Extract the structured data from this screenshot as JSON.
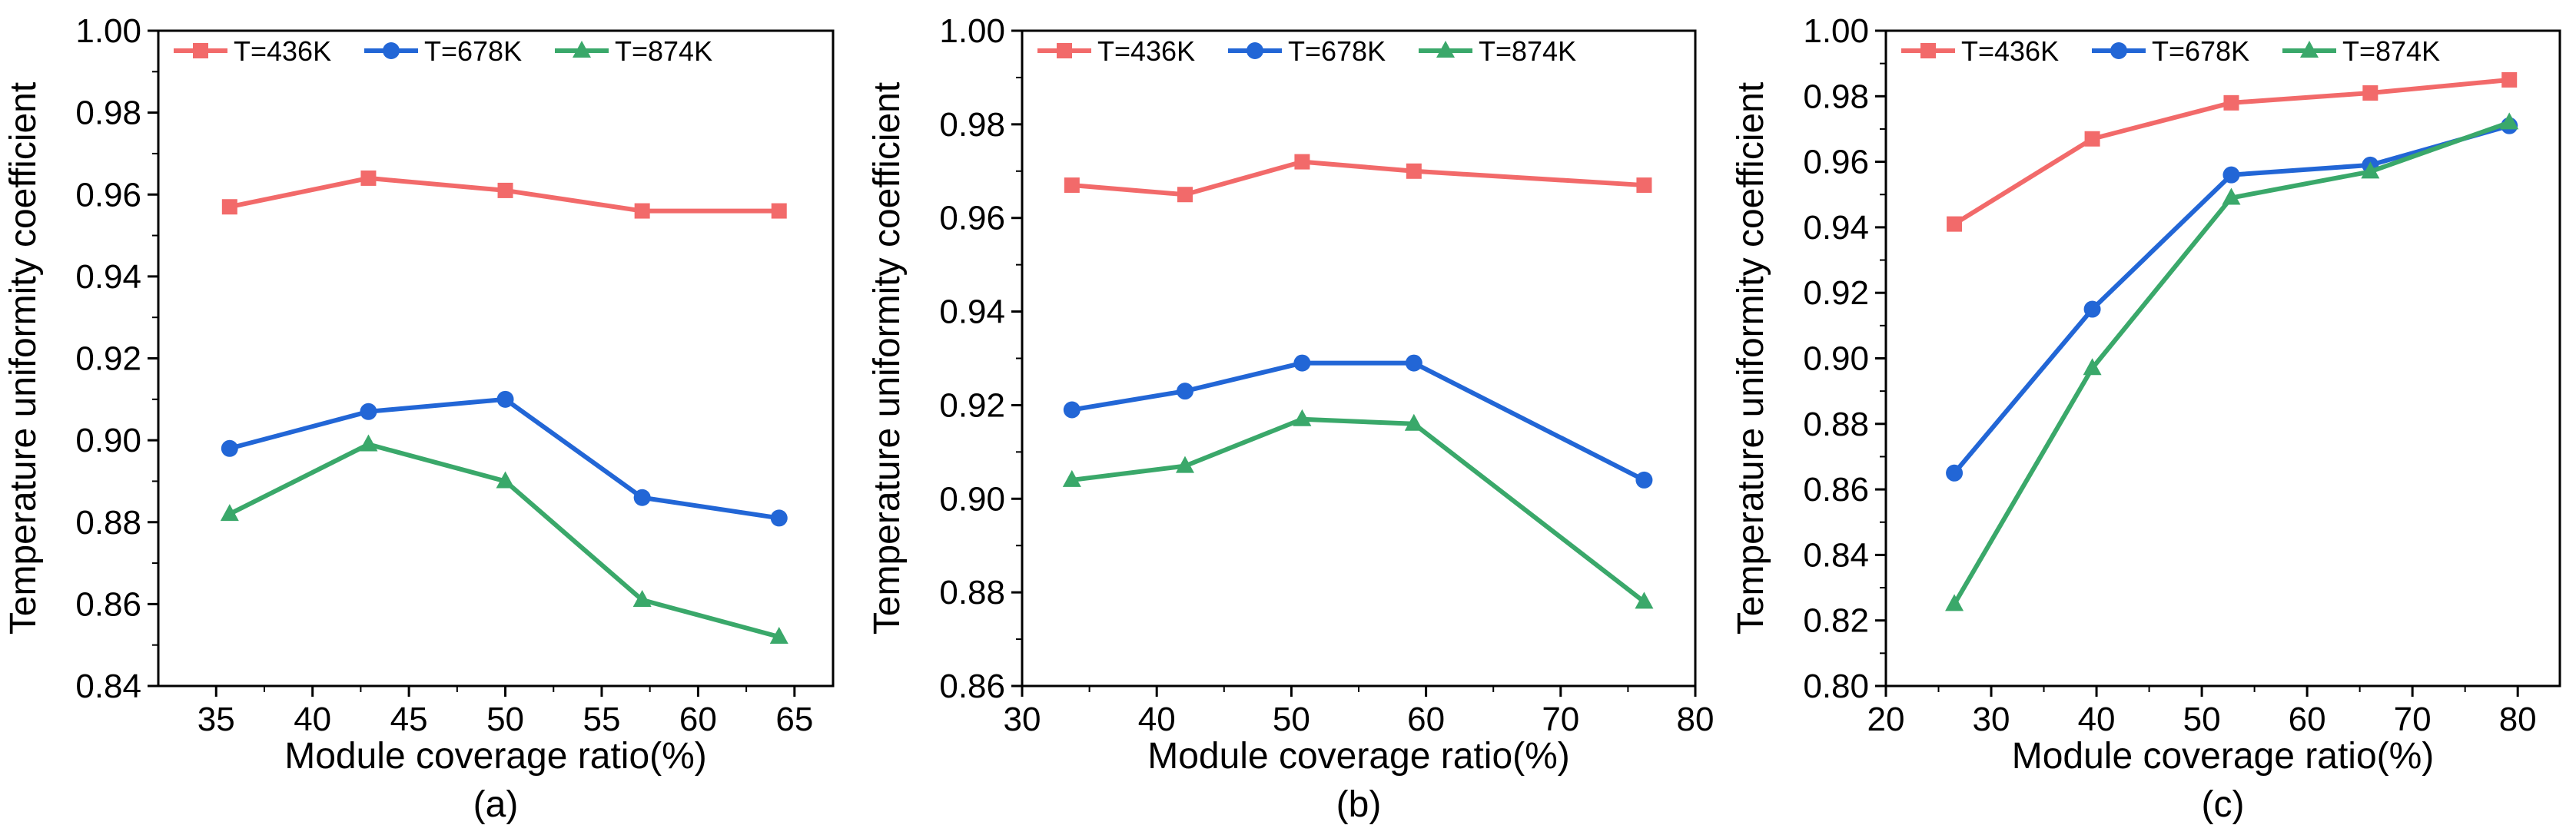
{
  "chart_data": [
    {
      "type": "line",
      "panel_label": "(a)",
      "xlabel": "Module coverage ratio(%)",
      "ylabel": "Temperature uniformity coefficient",
      "xlim": [
        32,
        67
      ],
      "ylim": [
        0.84,
        1.0
      ],
      "xticks": [
        35,
        40,
        45,
        50,
        55,
        60,
        65
      ],
      "yticks": [
        0.84,
        0.86,
        0.88,
        0.9,
        0.92,
        0.94,
        0.96,
        0.98,
        1.0
      ],
      "xtick_labels": [
        "35",
        "40",
        "45",
        "50",
        "55",
        "60",
        "65"
      ],
      "ytick_labels": [
        "0.84",
        "0.86",
        "0.88",
        "0.90",
        "0.92",
        "0.94",
        "0.96",
        "0.98",
        "1.00"
      ],
      "legend_position": "top-left",
      "series": [
        {
          "name": "T=436K",
          "color": "#f26a6a",
          "marker": "square",
          "x": [
            35.7,
            42.9,
            50.0,
            57.1,
            64.2
          ],
          "y": [
            0.957,
            0.964,
            0.961,
            0.956,
            0.956
          ]
        },
        {
          "name": "T=678K",
          "color": "#2266d6",
          "marker": "circle",
          "x": [
            35.7,
            42.9,
            50.0,
            57.1,
            64.2
          ],
          "y": [
            0.898,
            0.907,
            0.91,
            0.886,
            0.881
          ]
        },
        {
          "name": "T=874K",
          "color": "#3aa86a",
          "marker": "triangle",
          "x": [
            35.7,
            42.9,
            50.0,
            57.1,
            64.2
          ],
          "y": [
            0.882,
            0.899,
            0.89,
            0.861,
            0.852
          ]
        }
      ]
    },
    {
      "type": "line",
      "panel_label": "(b)",
      "xlabel": "Module coverage ratio(%)",
      "ylabel": "Temperature uniformity coefficient",
      "xlim": [
        30,
        80
      ],
      "ylim": [
        0.86,
        1.0
      ],
      "xticks": [
        30,
        40,
        50,
        60,
        70,
        80
      ],
      "yticks": [
        0.86,
        0.88,
        0.9,
        0.92,
        0.94,
        0.96,
        0.98,
        1.0
      ],
      "xtick_labels": [
        "30",
        "40",
        "50",
        "60",
        "70",
        "80"
      ],
      "ytick_labels": [
        "0.86",
        "0.88",
        "0.90",
        "0.92",
        "0.94",
        "0.96",
        "0.98",
        "1.00"
      ],
      "legend_position": "top-left",
      "series": [
        {
          "name": "T=436K",
          "color": "#f26a6a",
          "marker": "square",
          "x": [
            33.7,
            42.1,
            50.8,
            59.1,
            76.2
          ],
          "y": [
            0.967,
            0.965,
            0.972,
            0.97,
            0.967
          ]
        },
        {
          "name": "T=678K",
          "color": "#2266d6",
          "marker": "circle",
          "x": [
            33.7,
            42.1,
            50.8,
            59.1,
            76.2
          ],
          "y": [
            0.919,
            0.923,
            0.929,
            0.929,
            0.904
          ]
        },
        {
          "name": "T=874K",
          "color": "#3aa86a",
          "marker": "triangle",
          "x": [
            33.7,
            42.1,
            50.8,
            59.1,
            76.2
          ],
          "y": [
            0.904,
            0.907,
            0.917,
            0.916,
            0.878
          ]
        }
      ]
    },
    {
      "type": "line",
      "panel_label": "(c)",
      "xlabel": "Module coverage ratio(%)",
      "ylabel": "Temperature uniformity coefficient",
      "xlim": [
        20,
        84
      ],
      "ylim": [
        0.8,
        1.0
      ],
      "xticks": [
        20,
        30,
        40,
        50,
        60,
        70,
        80
      ],
      "yticks": [
        0.8,
        0.82,
        0.84,
        0.86,
        0.88,
        0.9,
        0.92,
        0.94,
        0.96,
        0.98,
        1.0
      ],
      "xtick_labels": [
        "20",
        "30",
        "40",
        "50",
        "60",
        "70",
        "80"
      ],
      "ytick_labels": [
        "0.80",
        "0.82",
        "0.84",
        "0.86",
        "0.88",
        "0.90",
        "0.92",
        "0.94",
        "0.96",
        "0.98",
        "1.00"
      ],
      "legend_position": "top-left",
      "series": [
        {
          "name": "T=436K",
          "color": "#f26a6a",
          "marker": "square",
          "x": [
            26.5,
            39.6,
            52.8,
            66.0,
            79.2
          ],
          "y": [
            0.941,
            0.967,
            0.978,
            0.981,
            0.985
          ]
        },
        {
          "name": "T=678K",
          "color": "#2266d6",
          "marker": "circle",
          "x": [
            26.5,
            39.6,
            52.8,
            66.0,
            79.2
          ],
          "y": [
            0.865,
            0.915,
            0.956,
            0.959,
            0.971
          ]
        },
        {
          "name": "T=874K",
          "color": "#3aa86a",
          "marker": "triangle",
          "x": [
            26.5,
            39.6,
            52.8,
            66.0,
            79.2
          ],
          "y": [
            0.825,
            0.897,
            0.949,
            0.957,
            0.972
          ]
        }
      ]
    }
  ]
}
